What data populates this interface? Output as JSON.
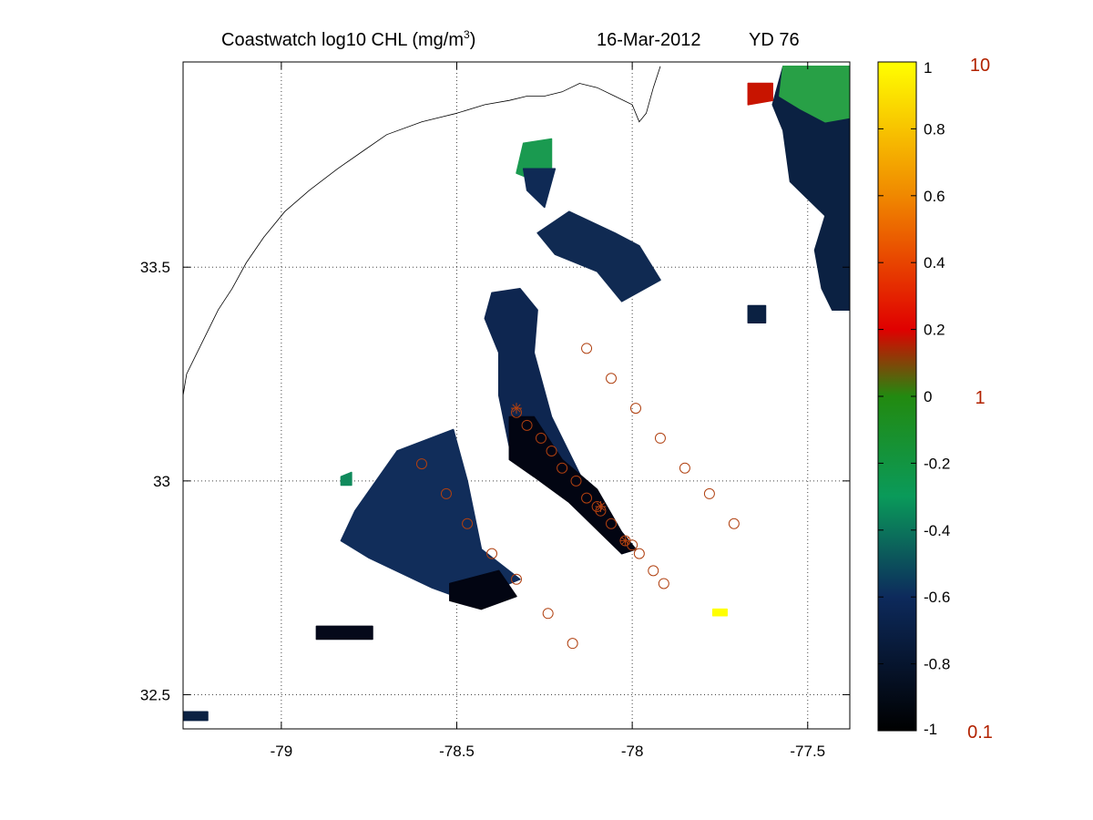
{
  "title": {
    "main": "Coastwatch  log10  CHL (mg/m",
    "unit_sup": "3",
    "close": ")",
    "date": "16-Mar-2012",
    "yearday": "YD 76"
  },
  "map": {
    "lon_range": [
      -79.28,
      -77.38
    ],
    "lat_range": [
      32.42,
      33.98
    ],
    "x_ticks": [
      {
        "v": -79,
        "label": "-79"
      },
      {
        "v": -78.5,
        "label": "-78.5"
      },
      {
        "v": -78,
        "label": "-78"
      },
      {
        "v": -77.5,
        "label": "-77.5"
      }
    ],
    "y_ticks": [
      {
        "v": 33.5,
        "label": "33.5"
      },
      {
        "v": 33,
        "label": "33"
      },
      {
        "v": 32.5,
        "label": "32.5"
      }
    ],
    "grid": true,
    "coastline": [
      [
        -78.5,
        33.86
      ],
      [
        -78.6,
        33.84
      ],
      [
        -78.7,
        33.81
      ],
      [
        -78.77,
        33.77
      ],
      [
        -78.84,
        33.73
      ],
      [
        -78.92,
        33.68
      ],
      [
        -78.99,
        33.63
      ],
      [
        -79.05,
        33.57
      ],
      [
        -79.1,
        33.51
      ],
      [
        -79.14,
        33.45
      ],
      [
        -79.18,
        33.4
      ],
      [
        -79.21,
        33.35
      ],
      [
        -79.24,
        33.3
      ],
      [
        -79.27,
        33.25
      ],
      [
        -79.28,
        33.2
      ]
    ],
    "coastline_north": [
      [
        -78.5,
        33.86
      ],
      [
        -78.42,
        33.88
      ],
      [
        -78.35,
        33.89
      ],
      [
        -78.3,
        33.9
      ],
      [
        -78.25,
        33.9
      ],
      [
        -78.2,
        33.91
      ],
      [
        -78.15,
        33.93
      ],
      [
        -78.1,
        33.92
      ],
      [
        -78.05,
        33.9
      ],
      [
        -78.0,
        33.88
      ],
      [
        -77.98,
        33.84
      ],
      [
        -77.96,
        33.86
      ],
      [
        -77.94,
        33.92
      ],
      [
        -77.92,
        33.97
      ]
    ],
    "chl_patches": [
      {
        "name": "north-east",
        "c": "#0b2142",
        "pts": [
          [
            -77.38,
            33.96
          ],
          [
            -77.57,
            33.97
          ],
          [
            -77.6,
            33.88
          ],
          [
            -77.57,
            33.82
          ],
          [
            -77.55,
            33.7
          ],
          [
            -77.45,
            33.62
          ],
          [
            -77.48,
            33.54
          ],
          [
            -77.46,
            33.45
          ],
          [
            -77.43,
            33.4
          ],
          [
            -77.38,
            33.4
          ]
        ]
      },
      {
        "name": "north-east-green",
        "c": "#28a046",
        "pts": [
          [
            -77.38,
            33.97
          ],
          [
            -77.57,
            33.97
          ],
          [
            -77.58,
            33.9
          ],
          [
            -77.52,
            33.87
          ],
          [
            -77.45,
            33.84
          ],
          [
            -77.38,
            33.85
          ]
        ]
      },
      {
        "name": "north-east-red",
        "c": "#c81400",
        "pts": [
          [
            -77.67,
            33.93
          ],
          [
            -77.6,
            33.93
          ],
          [
            -77.6,
            33.89
          ],
          [
            -77.67,
            33.88
          ]
        ]
      },
      {
        "name": "north-green",
        "c": "#1a9a50",
        "pts": [
          [
            -78.31,
            33.79
          ],
          [
            -78.23,
            33.8
          ],
          [
            -78.23,
            33.73
          ],
          [
            -78.27,
            33.7
          ],
          [
            -78.33,
            33.72
          ]
        ]
      },
      {
        "name": "north-dark",
        "c": "#0f2a55",
        "pts": [
          [
            -78.31,
            33.73
          ],
          [
            -78.22,
            33.73
          ],
          [
            -78.25,
            33.64
          ],
          [
            -78.3,
            33.68
          ]
        ]
      },
      {
        "name": "mid-north",
        "c": "#102a52",
        "pts": [
          [
            -78.27,
            33.58
          ],
          [
            -78.18,
            33.63
          ],
          [
            -78.05,
            33.58
          ],
          [
            -77.98,
            33.55
          ],
          [
            -77.92,
            33.47
          ],
          [
            -78.03,
            33.42
          ],
          [
            -78.1,
            33.49
          ],
          [
            -78.22,
            33.53
          ]
        ]
      },
      {
        "name": "east-small",
        "c": "#0b2142",
        "pts": [
          [
            -77.67,
            33.41
          ],
          [
            -77.62,
            33.41
          ],
          [
            -77.62,
            33.37
          ],
          [
            -77.67,
            33.37
          ]
        ]
      },
      {
        "name": "streak",
        "c": "#0e2650",
        "pts": [
          [
            -78.4,
            33.44
          ],
          [
            -78.32,
            33.45
          ],
          [
            -78.27,
            33.4
          ],
          [
            -78.28,
            33.3
          ],
          [
            -78.23,
            33.15
          ],
          [
            -78.14,
            33.0
          ],
          [
            -78.05,
            32.9
          ],
          [
            -77.99,
            32.84
          ],
          [
            -78.03,
            32.83
          ],
          [
            -78.1,
            32.9
          ],
          [
            -78.22,
            33.0
          ],
          [
            -78.35,
            33.08
          ],
          [
            -78.38,
            33.2
          ],
          [
            -78.38,
            33.3
          ],
          [
            -78.42,
            33.38
          ]
        ]
      },
      {
        "name": "streak-dark",
        "c": "#020512",
        "pts": [
          [
            -78.35,
            33.15
          ],
          [
            -78.28,
            33.15
          ],
          [
            -78.2,
            33.05
          ],
          [
            -78.1,
            32.98
          ],
          [
            -78.03,
            32.88
          ],
          [
            -77.99,
            32.84
          ],
          [
            -78.03,
            32.83
          ],
          [
            -78.08,
            32.87
          ],
          [
            -78.18,
            32.95
          ],
          [
            -78.28,
            33.01
          ],
          [
            -78.35,
            33.05
          ]
        ]
      },
      {
        "name": "south-west",
        "c": "#112d5a",
        "pts": [
          [
            -78.67,
            33.07
          ],
          [
            -78.51,
            33.12
          ],
          [
            -78.47,
            33.0
          ],
          [
            -78.43,
            32.84
          ],
          [
            -78.32,
            32.77
          ],
          [
            -78.47,
            32.72
          ],
          [
            -78.57,
            32.75
          ],
          [
            -78.75,
            32.82
          ],
          [
            -78.83,
            32.86
          ],
          [
            -78.79,
            32.93
          ]
        ]
      },
      {
        "name": "south-west-dark",
        "c": "#020512",
        "pts": [
          [
            -78.52,
            32.76
          ],
          [
            -78.38,
            32.79
          ],
          [
            -78.33,
            32.73
          ],
          [
            -78.43,
            32.7
          ],
          [
            -78.52,
            32.72
          ]
        ]
      },
      {
        "name": "south-small",
        "c": "#05091a",
        "pts": [
          [
            -78.9,
            32.66
          ],
          [
            -78.74,
            32.66
          ],
          [
            -78.74,
            32.63
          ],
          [
            -78.9,
            32.63
          ]
        ]
      },
      {
        "name": "green-speck",
        "c": "#108a5c",
        "pts": [
          [
            -78.83,
            33.01
          ],
          [
            -78.8,
            33.02
          ],
          [
            -78.8,
            32.99
          ],
          [
            -78.83,
            32.99
          ]
        ]
      },
      {
        "name": "yellow-speck",
        "c": "#ffff00",
        "pts": [
          [
            -77.77,
            32.7
          ],
          [
            -77.73,
            32.7
          ],
          [
            -77.73,
            32.685
          ],
          [
            -77.77,
            32.685
          ]
        ]
      },
      {
        "name": "sw-corner",
        "c": "#0b2142",
        "pts": [
          [
            -79.28,
            32.46
          ],
          [
            -79.21,
            32.46
          ],
          [
            -79.21,
            32.44
          ],
          [
            -79.28,
            32.44
          ]
        ]
      }
    ],
    "stations": [
      [
        -78.13,
        33.31
      ],
      [
        -78.06,
        33.24
      ],
      [
        -77.99,
        33.17
      ],
      [
        -77.92,
        33.1
      ],
      [
        -77.85,
        33.03
      ],
      [
        -77.78,
        32.97
      ],
      [
        -77.71,
        32.9
      ],
      [
        -78.33,
        33.16
      ],
      [
        -78.3,
        33.13
      ],
      [
        -78.26,
        33.1
      ],
      [
        -78.23,
        33.07
      ],
      [
        -78.2,
        33.03
      ],
      [
        -78.16,
        33.0
      ],
      [
        -78.13,
        32.96
      ],
      [
        -78.1,
        32.94
      ],
      [
        -78.09,
        32.93
      ],
      [
        -78.06,
        32.9
      ],
      [
        -78.02,
        32.86
      ],
      [
        -78.0,
        32.85
      ],
      [
        -77.98,
        32.83
      ],
      [
        -77.94,
        32.79
      ],
      [
        -77.91,
        32.76
      ],
      [
        -78.6,
        33.04
      ],
      [
        -78.53,
        32.97
      ],
      [
        -78.47,
        32.9
      ],
      [
        -78.4,
        32.83
      ],
      [
        -78.33,
        32.77
      ],
      [
        -78.24,
        32.69
      ],
      [
        -78.17,
        32.62
      ]
    ],
    "stars": [
      [
        -78.33,
        33.17
      ],
      [
        -78.09,
        32.94
      ],
      [
        -78.02,
        32.86
      ]
    ]
  },
  "colorbar": {
    "ticks": [
      {
        "v": 1,
        "label": "1"
      },
      {
        "v": 0.8,
        "label": "0.8"
      },
      {
        "v": 0.6,
        "label": "0.6"
      },
      {
        "v": 0.4,
        "label": "0.4"
      },
      {
        "v": 0.2,
        "label": "0.2"
      },
      {
        "v": 0,
        "label": "0"
      },
      {
        "v": -0.2,
        "label": "-0.2"
      },
      {
        "v": -0.4,
        "label": "-0.4"
      },
      {
        "v": -0.6,
        "label": "-0.6"
      },
      {
        "v": -0.8,
        "label": "-0.8"
      },
      {
        "v": -1,
        "label": "-1"
      }
    ],
    "range": [
      -1,
      1
    ],
    "stops": [
      {
        "v": -1,
        "c": "#000000"
      },
      {
        "v": -0.6,
        "c": "#0d2a5c"
      },
      {
        "v": -0.3,
        "c": "#0a9a5a"
      },
      {
        "v": 0,
        "c": "#228a10"
      },
      {
        "v": 0.2,
        "c": "#e00000"
      },
      {
        "v": 0.6,
        "c": "#f08800"
      },
      {
        "v": 1,
        "c": "#ffff00"
      }
    ],
    "linear_labels": [
      {
        "v": 1,
        "label": "10"
      },
      {
        "v": 0,
        "label": "1"
      },
      {
        "v": -1,
        "label": "0.1"
      }
    ]
  }
}
